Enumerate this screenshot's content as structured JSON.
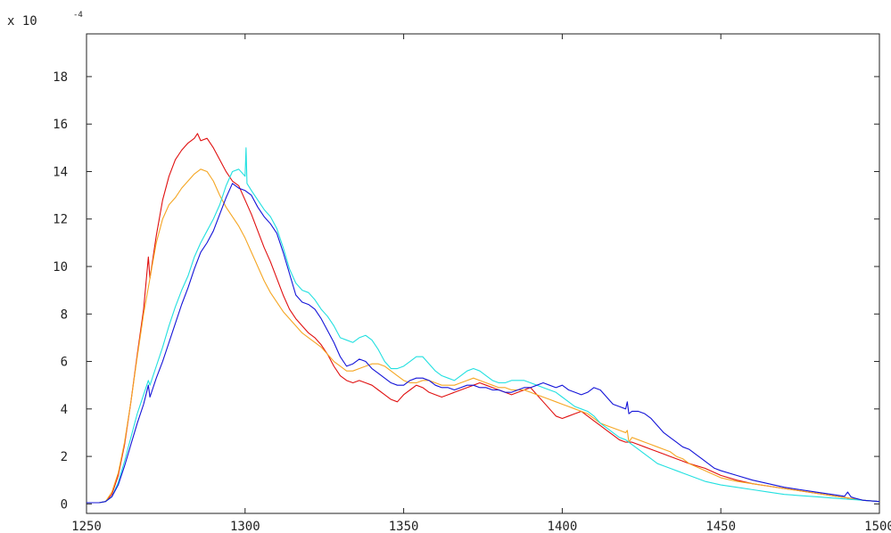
{
  "chart_data": {
    "type": "line",
    "title": "",
    "xlabel": "",
    "ylabel": "",
    "y_multiplier_text": "x 10",
    "y_multiplier_exponent": "-4",
    "xlim": [
      1250,
      1500
    ],
    "ylim": [
      -0.4,
      19.8
    ],
    "xticks": [
      1250,
      1300,
      1350,
      1400,
      1450,
      1500
    ],
    "yticks": [
      0,
      2,
      4,
      6,
      8,
      10,
      12,
      14,
      16,
      18
    ],
    "grid": false,
    "legend": "none",
    "series": [
      {
        "color": "#e01010",
        "x": [
          1250,
          1254,
          1256,
          1258,
          1260,
          1262,
          1264,
          1266,
          1268,
          1269.5,
          1270,
          1272,
          1274,
          1276,
          1278,
          1280,
          1282,
          1284,
          1285,
          1286,
          1288,
          1290,
          1292,
          1294,
          1296,
          1298,
          1300,
          1302,
          1304,
          1306,
          1308,
          1310,
          1312,
          1314,
          1316,
          1318,
          1320,
          1322,
          1324,
          1326,
          1328,
          1330,
          1332,
          1334,
          1336,
          1338,
          1340,
          1342,
          1344,
          1346,
          1348,
          1350,
          1352,
          1354,
          1356,
          1358,
          1360,
          1362,
          1364,
          1366,
          1368,
          1370,
          1372,
          1374,
          1376,
          1378,
          1380,
          1382,
          1384,
          1386,
          1388,
          1390,
          1392,
          1394,
          1396,
          1398,
          1400,
          1402,
          1404,
          1406,
          1408,
          1410,
          1412,
          1414,
          1416,
          1418,
          1420,
          1422,
          1424,
          1426,
          1428,
          1430,
          1432,
          1434,
          1436,
          1438,
          1440,
          1445,
          1450,
          1455,
          1460,
          1465,
          1470,
          1475,
          1480,
          1485,
          1490,
          1495,
          1500
        ],
        "y": [
          0.05,
          0.05,
          0.1,
          0.4,
          1.2,
          2.5,
          4.3,
          6.3,
          8.2,
          10.4,
          9.5,
          11.3,
          12.8,
          13.8,
          14.5,
          14.9,
          15.2,
          15.4,
          15.6,
          15.3,
          15.4,
          15.0,
          14.5,
          14.0,
          13.6,
          13.4,
          12.8,
          12.2,
          11.5,
          10.8,
          10.2,
          9.5,
          8.8,
          8.2,
          7.8,
          7.5,
          7.2,
          7.0,
          6.7,
          6.3,
          5.8,
          5.4,
          5.2,
          5.1,
          5.2,
          5.1,
          5.0,
          4.8,
          4.6,
          4.4,
          4.3,
          4.6,
          4.8,
          5.0,
          4.9,
          4.7,
          4.6,
          4.5,
          4.6,
          4.7,
          4.8,
          4.9,
          5.0,
          5.1,
          5.0,
          4.9,
          4.8,
          4.7,
          4.6,
          4.7,
          4.8,
          4.9,
          4.6,
          4.3,
          4.0,
          3.7,
          3.6,
          3.7,
          3.8,
          3.9,
          3.7,
          3.5,
          3.3,
          3.1,
          2.9,
          2.7,
          2.6,
          2.6,
          2.5,
          2.4,
          2.3,
          2.2,
          2.1,
          2.0,
          1.9,
          1.8,
          1.7,
          1.5,
          1.2,
          1.0,
          0.85,
          0.75,
          0.65,
          0.55,
          0.45,
          0.35,
          0.25,
          0.15,
          0.1
        ]
      },
      {
        "color": "#f5a623",
        "x": [
          1250,
          1254,
          1256,
          1258,
          1260,
          1262,
          1264,
          1266,
          1268,
          1270,
          1272,
          1274,
          1276,
          1278,
          1280,
          1282,
          1284,
          1286,
          1288,
          1290,
          1292,
          1294,
          1296,
          1298,
          1300,
          1302,
          1304,
          1306,
          1308,
          1310,
          1312,
          1314,
          1316,
          1318,
          1320,
          1322,
          1324,
          1326,
          1328,
          1330,
          1332,
          1334,
          1336,
          1338,
          1340,
          1342,
          1344,
          1346,
          1348,
          1350,
          1352,
          1354,
          1356,
          1358,
          1360,
          1362,
          1364,
          1366,
          1368,
          1370,
          1372,
          1374,
          1376,
          1378,
          1380,
          1382,
          1384,
          1386,
          1388,
          1390,
          1392,
          1394,
          1396,
          1398,
          1400,
          1402,
          1404,
          1406,
          1408,
          1410,
          1412,
          1414,
          1416,
          1418,
          1420,
          1420.5,
          1421,
          1422,
          1424,
          1426,
          1428,
          1430,
          1432,
          1434,
          1436,
          1438,
          1440,
          1445,
          1450,
          1455,
          1460,
          1465,
          1470,
          1475,
          1480,
          1485,
          1490,
          1495,
          1500
        ],
        "y": [
          0.05,
          0.05,
          0.1,
          0.5,
          1.3,
          2.6,
          4.3,
          6.2,
          8.0,
          9.5,
          11.0,
          12.0,
          12.6,
          12.9,
          13.3,
          13.6,
          13.9,
          14.1,
          14.0,
          13.6,
          13.0,
          12.5,
          12.1,
          11.7,
          11.2,
          10.6,
          10.0,
          9.4,
          8.9,
          8.5,
          8.1,
          7.8,
          7.5,
          7.2,
          7.0,
          6.8,
          6.6,
          6.3,
          6.0,
          5.8,
          5.6,
          5.6,
          5.7,
          5.8,
          5.9,
          5.9,
          5.8,
          5.6,
          5.4,
          5.2,
          5.1,
          5.1,
          5.2,
          5.2,
          5.1,
          5.0,
          5.0,
          5.0,
          5.1,
          5.2,
          5.3,
          5.2,
          5.1,
          5.0,
          4.9,
          4.9,
          4.8,
          4.8,
          4.8,
          4.7,
          4.6,
          4.5,
          4.4,
          4.3,
          4.2,
          4.1,
          4.0,
          3.9,
          3.8,
          3.6,
          3.4,
          3.3,
          3.2,
          3.1,
          3.0,
          3.1,
          2.6,
          2.8,
          2.7,
          2.6,
          2.5,
          2.4,
          2.3,
          2.2,
          2.0,
          1.9,
          1.7,
          1.4,
          1.1,
          0.95,
          0.85,
          0.75,
          0.65,
          0.55,
          0.45,
          0.35,
          0.25,
          0.15,
          0.1
        ]
      },
      {
        "color": "#22e0e0",
        "x": [
          1250,
          1254,
          1256,
          1258,
          1260,
          1262,
          1264,
          1266,
          1268,
          1269.5,
          1270,
          1272,
          1274,
          1276,
          1278,
          1280,
          1282,
          1284,
          1286,
          1288,
          1290,
          1292,
          1294,
          1296,
          1298,
          1300,
          1300.3,
          1300.6,
          1302,
          1304,
          1306,
          1308,
          1310,
          1312,
          1314,
          1316,
          1318,
          1320,
          1322,
          1324,
          1326,
          1328,
          1330,
          1332,
          1334,
          1336,
          1338,
          1340,
          1342,
          1344,
          1346,
          1348,
          1350,
          1352,
          1354,
          1356,
          1358,
          1360,
          1362,
          1364,
          1366,
          1368,
          1370,
          1372,
          1374,
          1376,
          1378,
          1380,
          1382,
          1384,
          1386,
          1388,
          1390,
          1392,
          1394,
          1396,
          1398,
          1400,
          1402,
          1404,
          1406,
          1408,
          1410,
          1412,
          1414,
          1416,
          1418,
          1420,
          1422,
          1424,
          1426,
          1428,
          1430,
          1432,
          1434,
          1436,
          1438,
          1440,
          1445,
          1450,
          1455,
          1460,
          1465,
          1470,
          1475,
          1480,
          1485,
          1490,
          1495,
          1500
        ],
        "y": [
          0.05,
          0.05,
          0.1,
          0.3,
          0.9,
          1.8,
          2.8,
          3.8,
          4.6,
          5.2,
          5.0,
          5.8,
          6.6,
          7.5,
          8.3,
          9.0,
          9.6,
          10.4,
          11.0,
          11.5,
          12.0,
          12.6,
          13.4,
          14.0,
          14.1,
          13.8,
          15.0,
          13.5,
          13.2,
          12.8,
          12.4,
          12.1,
          11.6,
          10.8,
          9.9,
          9.3,
          9.0,
          8.9,
          8.6,
          8.2,
          7.9,
          7.5,
          7.0,
          6.9,
          6.8,
          7.0,
          7.1,
          6.9,
          6.5,
          6.0,
          5.7,
          5.7,
          5.8,
          6.0,
          6.2,
          6.2,
          5.9,
          5.6,
          5.4,
          5.3,
          5.2,
          5.4,
          5.6,
          5.7,
          5.6,
          5.4,
          5.2,
          5.1,
          5.1,
          5.2,
          5.2,
          5.2,
          5.1,
          5.0,
          4.9,
          4.8,
          4.7,
          4.5,
          4.3,
          4.1,
          4.0,
          3.9,
          3.7,
          3.4,
          3.2,
          3.0,
          2.8,
          2.7,
          2.5,
          2.3,
          2.1,
          1.9,
          1.7,
          1.6,
          1.5,
          1.4,
          1.3,
          1.2,
          0.95,
          0.8,
          0.7,
          0.6,
          0.5,
          0.4,
          0.35,
          0.3,
          0.25,
          0.2,
          0.15,
          0.1
        ]
      },
      {
        "color": "#1414d8",
        "x": [
          1250,
          1254,
          1256,
          1258,
          1260,
          1262,
          1264,
          1266,
          1268,
          1269.5,
          1270,
          1272,
          1274,
          1276,
          1278,
          1280,
          1282,
          1284,
          1286,
          1288,
          1290,
          1292,
          1294,
          1296,
          1298,
          1300,
          1302,
          1304,
          1306,
          1308,
          1310,
          1312,
          1314,
          1316,
          1318,
          1320,
          1322,
          1324,
          1326,
          1328,
          1330,
          1332,
          1334,
          1336,
          1338,
          1340,
          1342,
          1344,
          1346,
          1348,
          1350,
          1352,
          1354,
          1356,
          1358,
          1360,
          1362,
          1364,
          1366,
          1368,
          1370,
          1372,
          1374,
          1376,
          1378,
          1380,
          1382,
          1384,
          1386,
          1388,
          1390,
          1392,
          1394,
          1396,
          1398,
          1400,
          1402,
          1404,
          1406,
          1408,
          1410,
          1412,
          1414,
          1416,
          1418,
          1420,
          1420.5,
          1421,
          1422,
          1424,
          1426,
          1428,
          1430,
          1432,
          1434,
          1436,
          1438,
          1440,
          1442,
          1444,
          1446,
          1448,
          1450,
          1455,
          1460,
          1465,
          1470,
          1475,
          1480,
          1485,
          1489,
          1490,
          1491,
          1492,
          1495,
          1500
        ],
        "y": [
          0.05,
          0.05,
          0.1,
          0.3,
          0.8,
          1.6,
          2.5,
          3.4,
          4.2,
          5.0,
          4.5,
          5.3,
          6.0,
          6.8,
          7.6,
          8.4,
          9.1,
          9.9,
          10.6,
          11.0,
          11.5,
          12.2,
          12.9,
          13.5,
          13.3,
          13.2,
          13.0,
          12.5,
          12.1,
          11.8,
          11.4,
          10.6,
          9.7,
          8.8,
          8.5,
          8.4,
          8.2,
          7.8,
          7.3,
          6.8,
          6.2,
          5.8,
          5.9,
          6.1,
          6.0,
          5.7,
          5.5,
          5.3,
          5.1,
          5.0,
          5.0,
          5.2,
          5.3,
          5.3,
          5.2,
          5.0,
          4.9,
          4.9,
          4.8,
          4.9,
          5.0,
          5.0,
          4.9,
          4.9,
          4.8,
          4.8,
          4.7,
          4.7,
          4.8,
          4.9,
          4.9,
          5.0,
          5.1,
          5.0,
          4.9,
          5.0,
          4.8,
          4.7,
          4.6,
          4.7,
          4.9,
          4.8,
          4.5,
          4.2,
          4.1,
          4.0,
          4.3,
          3.8,
          3.9,
          3.9,
          3.8,
          3.6,
          3.3,
          3.0,
          2.8,
          2.6,
          2.4,
          2.3,
          2.1,
          1.9,
          1.7,
          1.5,
          1.4,
          1.2,
          1.0,
          0.85,
          0.7,
          0.6,
          0.5,
          0.4,
          0.32,
          0.5,
          0.3,
          0.25,
          0.15,
          0.1
        ]
      }
    ]
  }
}
